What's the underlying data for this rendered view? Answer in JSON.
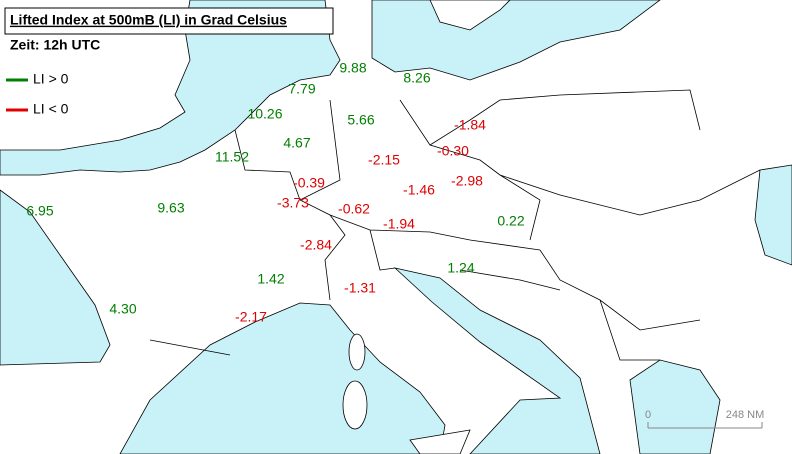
{
  "title": "Lifted Index at 500mB (LI) in Grad Celsius",
  "time": "Zeit: 12h UTC",
  "legend": [
    {
      "name": "LI > 0",
      "color": "#008000"
    },
    {
      "name": "LI < 0",
      "color": "#e00000"
    }
  ],
  "points": [
    "9.88",
    "8.26",
    "7.79",
    "10.26",
    "5.66",
    "-1.84",
    "4.67",
    "-0.30",
    "11.52",
    "-2.15",
    "-2.98",
    "-0.39",
    "-1.46",
    "6.95",
    "9.63",
    "-3.73",
    "-0.62",
    "-1.94",
    "0.22",
    "-2.84",
    "1.24",
    "1.42",
    "-1.31",
    "4.30",
    "-2.17"
  ],
  "scale": {
    "start": "0",
    "end": "248 NM"
  }
}
